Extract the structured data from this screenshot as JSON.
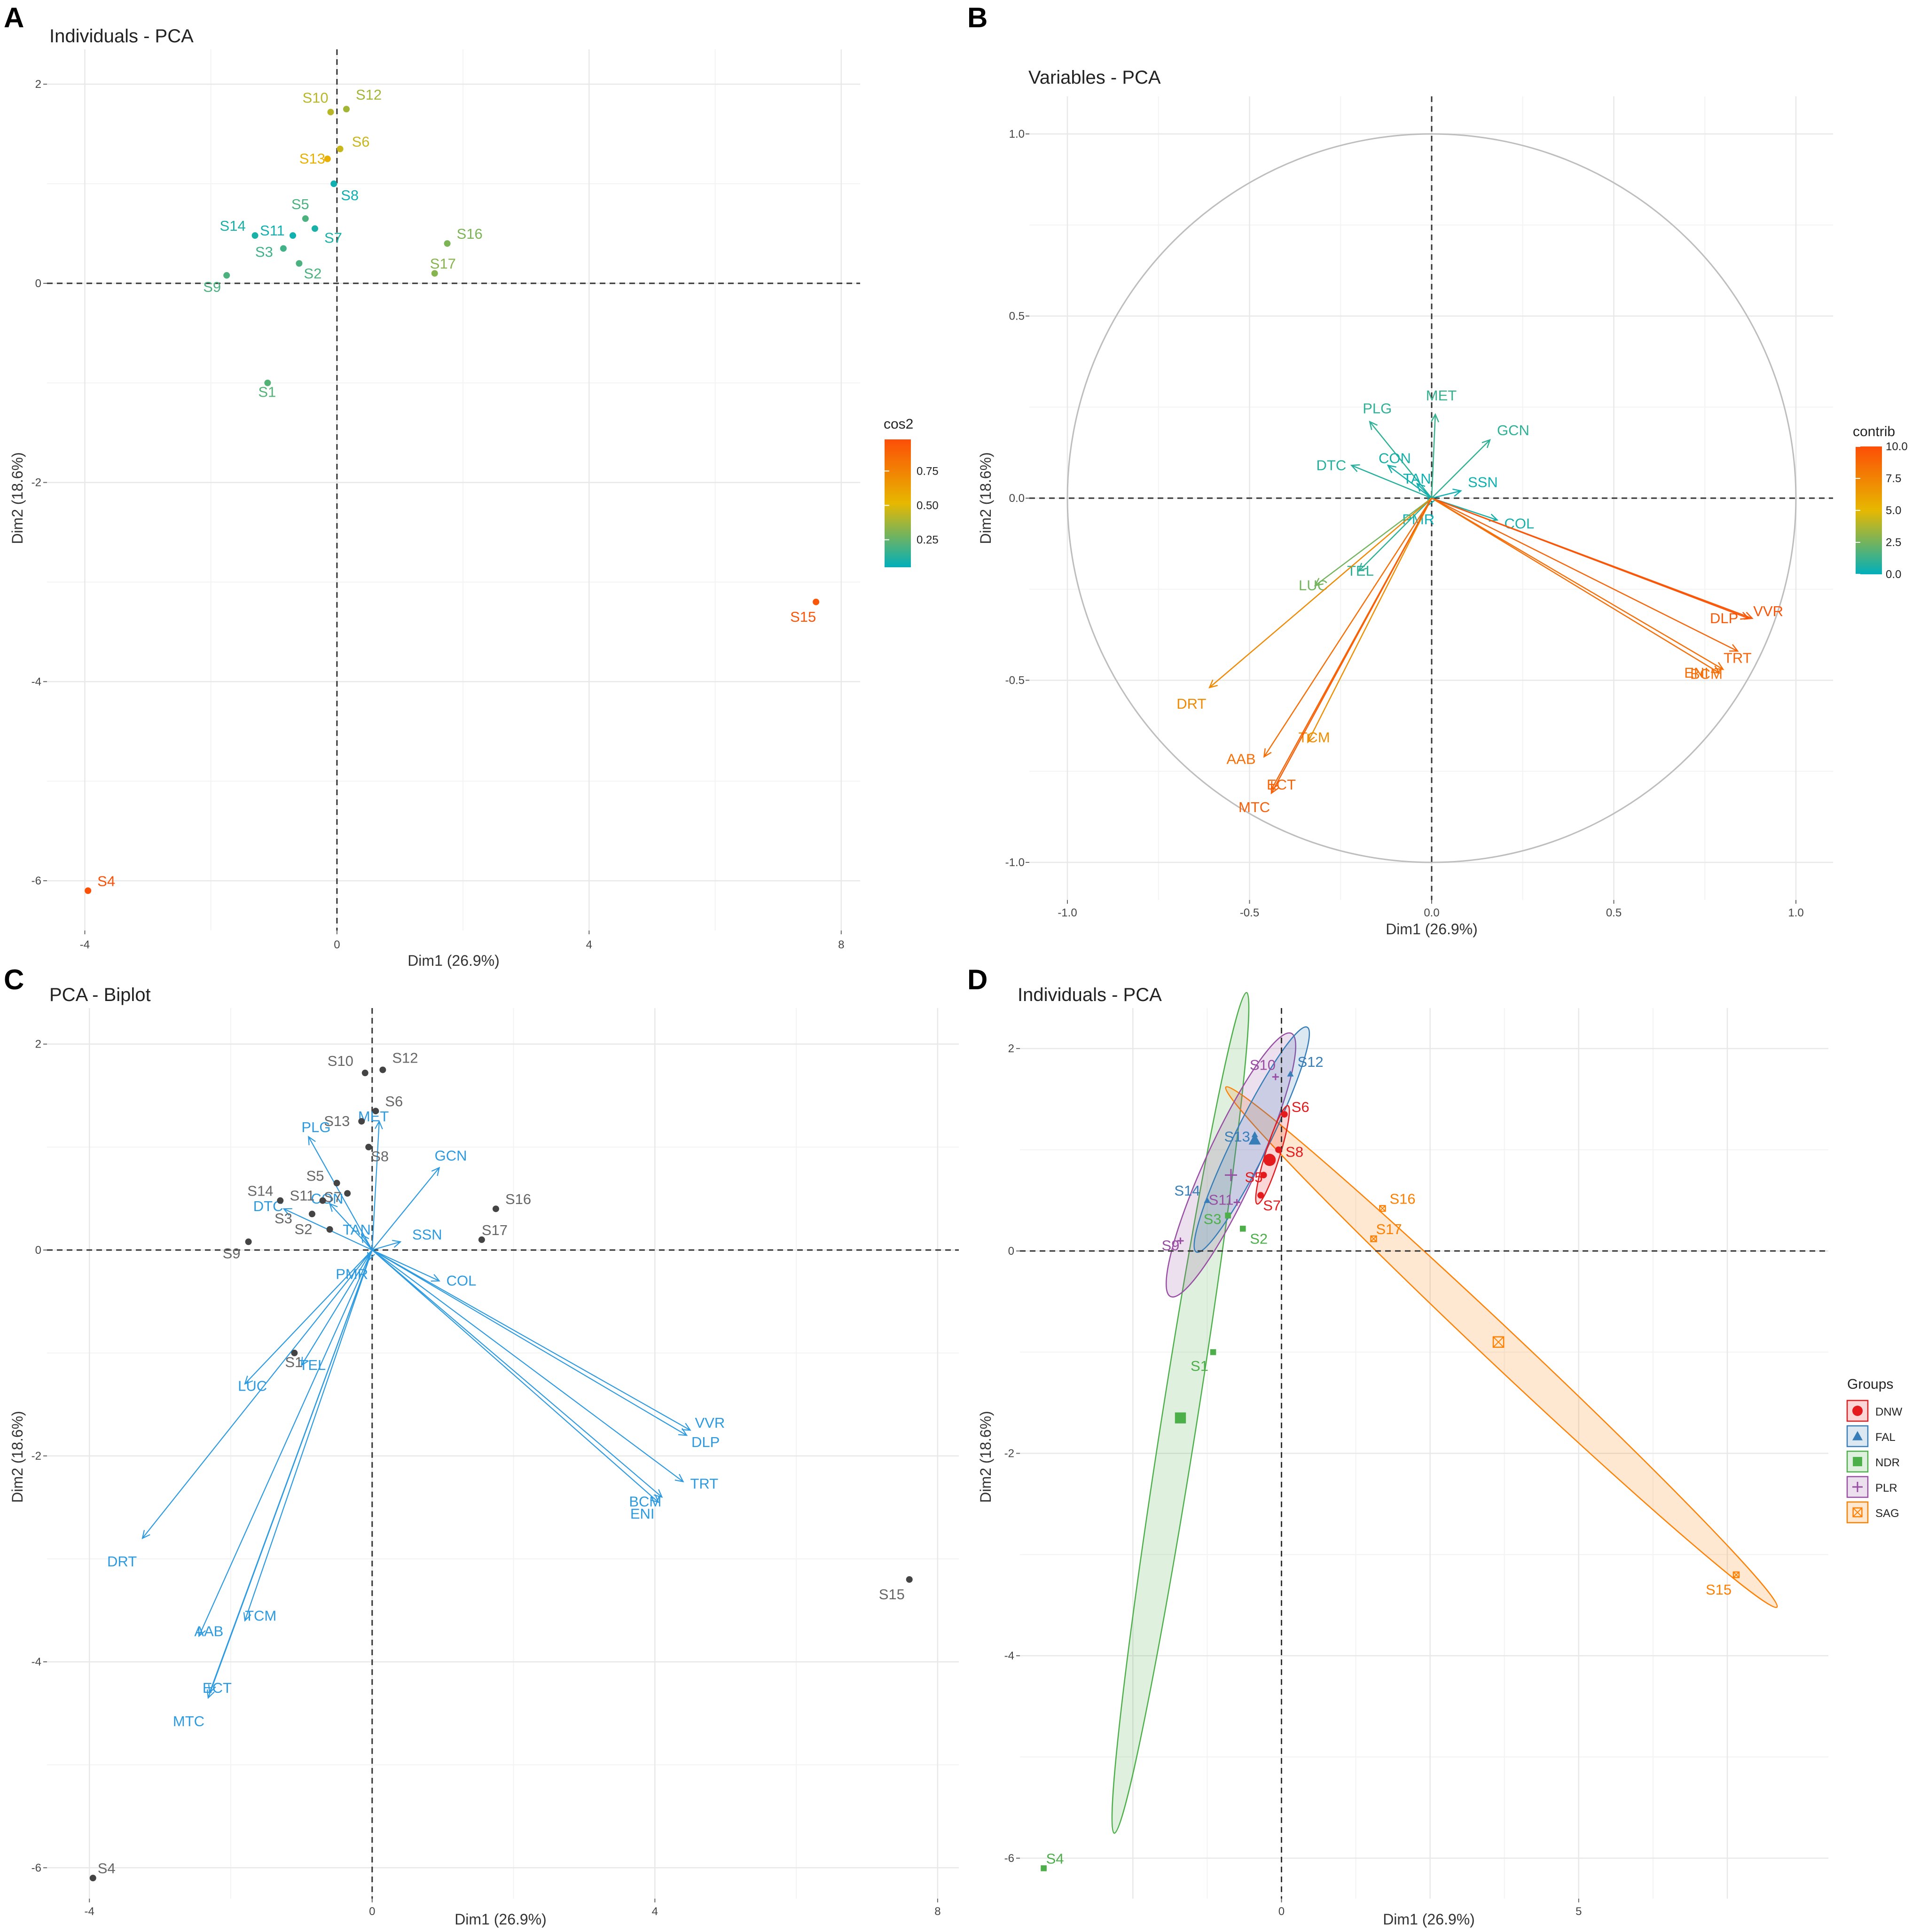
{
  "chart_data": [
    {
      "panel": "A",
      "type": "scatter",
      "title": "Individuals - PCA",
      "xlabel": "Dim1 (26.9%)",
      "ylabel": "Dim2 (18.6%)",
      "xlim": [
        -4,
        8
      ],
      "ylim": [
        -6.3,
        2.1
      ],
      "xticks": [
        -4,
        0,
        4,
        8
      ],
      "yticks": [
        -6,
        -4,
        -2,
        0,
        2
      ],
      "xtick_labels": [
        "-4",
        "0",
        "4",
        "8"
      ],
      "ytick_labels": [
        "-6",
        "-4",
        "-2",
        "0",
        "2"
      ],
      "legend_title": "cos2",
      "legend_range": [
        0.05,
        0.98
      ],
      "legend_ticks": [
        0.25,
        0.5,
        0.75
      ],
      "legend_tick_labels": [
        "0.25",
        "0.50",
        "0.75"
      ],
      "points": [
        {
          "label": "S1",
          "x": -1.1,
          "y": -1.0,
          "c": 0.22
        },
        {
          "label": "S2",
          "x": -0.6,
          "y": 0.2,
          "c": 0.2
        },
        {
          "label": "S3",
          "x": -0.85,
          "y": 0.35,
          "c": 0.18
        },
        {
          "label": "S4",
          "x": -3.95,
          "y": -6.1,
          "c": 0.97
        },
        {
          "label": "S5",
          "x": -0.5,
          "y": 0.65,
          "c": 0.2
        },
        {
          "label": "S6",
          "x": 0.05,
          "y": 1.35,
          "c": 0.45
        },
        {
          "label": "S7",
          "x": -0.35,
          "y": 0.55,
          "c": 0.1
        },
        {
          "label": "S8",
          "x": -0.05,
          "y": 1.0,
          "c": 0.08
        },
        {
          "label": "S9",
          "x": -1.75,
          "y": 0.08,
          "c": 0.2
        },
        {
          "label": "S10",
          "x": -0.1,
          "y": 1.72,
          "c": 0.42
        },
        {
          "label": "S11",
          "x": -0.7,
          "y": 0.48,
          "c": 0.08
        },
        {
          "label": "S12",
          "x": 0.15,
          "y": 1.75,
          "c": 0.38
        },
        {
          "label": "S13",
          "x": -0.15,
          "y": 1.25,
          "c": 0.55
        },
        {
          "label": "S14",
          "x": -1.3,
          "y": 0.48,
          "c": 0.1
        },
        {
          "label": "S15",
          "x": 7.6,
          "y": -3.2,
          "c": 0.95
        },
        {
          "label": "S16",
          "x": 1.75,
          "y": 0.4,
          "c": 0.3
        },
        {
          "label": "S17",
          "x": 1.55,
          "y": 0.1,
          "c": 0.32
        }
      ]
    },
    {
      "panel": "B",
      "type": "scatter",
      "title": "Variables - PCA",
      "xlabel": "Dim1 (26.9%)",
      "ylabel": "Dim2 (18.6%)",
      "xlim": [
        -1.0,
        1.0
      ],
      "ylim": [
        -1.0,
        1.0
      ],
      "xticks": [
        -1.0,
        -0.5,
        0.0,
        0.5,
        1.0
      ],
      "yticks": [
        -1.0,
        -0.5,
        0.0,
        0.5,
        1.0
      ],
      "xtick_labels": [
        "-1.0",
        "-0.5",
        "0.0",
        "0.5",
        "1.0"
      ],
      "ytick_labels": [
        "-1.0",
        "-0.5",
        "0.0",
        "0.5",
        "1.0"
      ],
      "legend_title": "contrib",
      "legend_range": [
        0,
        10
      ],
      "legend_ticks": [
        0,
        2.5,
        5,
        7.5,
        10
      ],
      "legend_tick_labels": [
        "0.0",
        "2.5",
        "5.0",
        "7.5",
        "10.0"
      ],
      "arrows": [
        {
          "label": "PLG",
          "x": -0.17,
          "y": 0.21,
          "c": 1.0
        },
        {
          "label": "MET",
          "x": 0.01,
          "y": 0.23,
          "c": 1.2
        },
        {
          "label": "GCN",
          "x": 0.16,
          "y": 0.16,
          "c": 1.0
        },
        {
          "label": "CON",
          "x": -0.12,
          "y": 0.09,
          "c": 0.5
        },
        {
          "label": "DTC",
          "x": -0.22,
          "y": 0.09,
          "c": 0.8
        },
        {
          "label": "TAN",
          "x": -0.04,
          "y": 0.04,
          "c": 0.3
        },
        {
          "label": "SSN",
          "x": 0.08,
          "y": 0.02,
          "c": 0.3
        },
        {
          "label": "PMR",
          "x": -0.01,
          "y": -0.02,
          "c": 0.2
        },
        {
          "label": "COL",
          "x": 0.18,
          "y": -0.06,
          "c": 0.5
        },
        {
          "label": "LUC",
          "x": -0.32,
          "y": -0.24,
          "c": 2.5
        },
        {
          "label": "TEL",
          "x": -0.2,
          "y": -0.2,
          "c": 1.0
        },
        {
          "label": "DLP",
          "x": 0.88,
          "y": -0.33,
          "c": 9.5
        },
        {
          "label": "VVR",
          "x": 0.87,
          "y": -0.33,
          "c": 9.7
        },
        {
          "label": "TRT",
          "x": 0.84,
          "y": -0.42,
          "c": 9.0
        },
        {
          "label": "BCM",
          "x": 0.8,
          "y": -0.47,
          "c": 8.5
        },
        {
          "label": "ENI",
          "x": 0.79,
          "y": -0.48,
          "c": 8.5
        },
        {
          "label": "DRT",
          "x": -0.61,
          "y": -0.52,
          "c": 7.2
        },
        {
          "label": "TCM",
          "x": -0.34,
          "y": -0.67,
          "c": 7.0
        },
        {
          "label": "AAB",
          "x": -0.46,
          "y": -0.71,
          "c": 8.5
        },
        {
          "label": "ECT",
          "x": -0.44,
          "y": -0.8,
          "c": 9.0
        },
        {
          "label": "MTC",
          "x": -0.44,
          "y": -0.81,
          "c": 9.2
        }
      ]
    },
    {
      "panel": "C",
      "type": "scatter",
      "title": "PCA - Biplot",
      "xlabel": "Dim1 (26.9%)",
      "ylabel": "Dim2 (18.6%)",
      "xlim": [
        -4,
        8
      ],
      "ylim": [
        -6.3,
        2.1
      ],
      "xticks": [
        -4,
        0,
        4,
        8
      ],
      "yticks": [
        -6,
        -4,
        -2,
        0,
        2
      ],
      "xtick_labels": [
        "-4",
        "0",
        "4",
        "8"
      ],
      "ytick_labels": [
        "-6",
        "-4",
        "-2",
        "0",
        "2"
      ],
      "points": [
        {
          "label": "S1",
          "x": -1.1,
          "y": -1.0
        },
        {
          "label": "S2",
          "x": -0.6,
          "y": 0.2
        },
        {
          "label": "S3",
          "x": -0.85,
          "y": 0.35
        },
        {
          "label": "S4",
          "x": -3.95,
          "y": -6.1
        },
        {
          "label": "S5",
          "x": -0.5,
          "y": 0.65
        },
        {
          "label": "S6",
          "x": 0.05,
          "y": 1.35
        },
        {
          "label": "S7",
          "x": -0.35,
          "y": 0.55
        },
        {
          "label": "S8",
          "x": -0.05,
          "y": 1.0
        },
        {
          "label": "S9",
          "x": -1.75,
          "y": 0.08
        },
        {
          "label": "S10",
          "x": -0.1,
          "y": 1.72
        },
        {
          "label": "S11",
          "x": -0.7,
          "y": 0.48
        },
        {
          "label": "S12",
          "x": 0.15,
          "y": 1.75
        },
        {
          "label": "S13",
          "x": -0.15,
          "y": 1.25
        },
        {
          "label": "S14",
          "x": -1.3,
          "y": 0.48
        },
        {
          "label": "S15",
          "x": 7.6,
          "y": -3.2
        },
        {
          "label": "S16",
          "x": 1.75,
          "y": 0.4
        },
        {
          "label": "S17",
          "x": 1.55,
          "y": 0.1
        }
      ],
      "arrows": [
        {
          "label": "PLG",
          "x": -0.9,
          "y": 1.1
        },
        {
          "label": "MET",
          "x": 0.1,
          "y": 1.25
        },
        {
          "label": "GCN",
          "x": 0.95,
          "y": 0.8
        },
        {
          "label": "CON",
          "x": -0.6,
          "y": 0.45
        },
        {
          "label": "DTC",
          "x": -1.25,
          "y": 0.4
        },
        {
          "label": "TAN",
          "x": -0.15,
          "y": 0.15
        },
        {
          "label": "SSN",
          "x": 0.4,
          "y": 0.08
        },
        {
          "label": "PMR",
          "x": -0.05,
          "y": -0.1
        },
        {
          "label": "COL",
          "x": 0.95,
          "y": -0.3
        },
        {
          "label": "LUC",
          "x": -1.8,
          "y": -1.3
        },
        {
          "label": "TEL",
          "x": -1.0,
          "y": -1.12
        },
        {
          "label": "VVR",
          "x": 4.5,
          "y": -1.75
        },
        {
          "label": "DLP",
          "x": 4.45,
          "y": -1.8
        },
        {
          "label": "TRT",
          "x": 4.4,
          "y": -2.25
        },
        {
          "label": "BCM",
          "x": 4.1,
          "y": -2.4
        },
        {
          "label": "ENI",
          "x": 4.05,
          "y": -2.45
        },
        {
          "label": "DRT",
          "x": -3.25,
          "y": -2.8
        },
        {
          "label": "TCM",
          "x": -1.8,
          "y": -3.6
        },
        {
          "label": "AAB",
          "x": -2.45,
          "y": -3.75
        },
        {
          "label": "ECT",
          "x": -2.3,
          "y": -4.3
        },
        {
          "label": "MTC",
          "x": -2.32,
          "y": -4.35
        }
      ]
    },
    {
      "panel": "D",
      "type": "scatter",
      "title": "Individuals - PCA",
      "xlabel": "Dim1 (26.9%)",
      "ylabel": "Dim2 (18.6%)",
      "xlim": [
        -4.2,
        9.5
      ],
      "ylim": [
        -6.4,
        2.3
      ],
      "xticks": [
        0,
        5
      ],
      "yticks": [
        -6,
        -4,
        -2,
        0,
        2
      ],
      "xtick_labels": [
        "0",
        "5"
      ],
      "ytick_labels": [
        "-6",
        "-4",
        "-2",
        "0",
        "2"
      ],
      "legend_title": "Groups",
      "groups": [
        {
          "name": "DNW",
          "color": "#e41a1c",
          "marker": "circle"
        },
        {
          "name": "FAL",
          "color": "#377eb8",
          "marker": "triangle"
        },
        {
          "name": "NDR",
          "color": "#4daf4a",
          "marker": "square"
        },
        {
          "name": "PLR",
          "color": "#984ea3",
          "marker": "plus"
        },
        {
          "name": "SAG",
          "color": "#ff7f00",
          "marker": "boxx"
        }
      ],
      "points": [
        {
          "label": "S1",
          "x": -1.15,
          "y": -1.0,
          "g": "NDR"
        },
        {
          "label": "S2",
          "x": -0.65,
          "y": 0.22,
          "g": "NDR"
        },
        {
          "label": "S3",
          "x": -0.9,
          "y": 0.35,
          "g": "NDR"
        },
        {
          "label": "S4",
          "x": -4.0,
          "y": -6.1,
          "g": "NDR"
        },
        {
          "label": "S5",
          "x": -0.3,
          "y": 0.75,
          "g": "DNW"
        },
        {
          "label": "S6",
          "x": 0.05,
          "y": 1.35,
          "g": "DNW"
        },
        {
          "label": "S7",
          "x": -0.35,
          "y": 0.55,
          "g": "DNW"
        },
        {
          "label": "S8",
          "x": -0.05,
          "y": 1.0,
          "g": "DNW"
        },
        {
          "label": "S9",
          "x": -1.7,
          "y": 0.1,
          "g": "PLR"
        },
        {
          "label": "S10",
          "x": -0.1,
          "y": 1.72,
          "g": "PLR"
        },
        {
          "label": "S11",
          "x": -0.75,
          "y": 0.48,
          "g": "PLR"
        },
        {
          "label": "S12",
          "x": 0.15,
          "y": 1.75,
          "g": "FAL"
        },
        {
          "label": "S13",
          "x": -0.45,
          "y": 1.15,
          "g": "FAL"
        },
        {
          "label": "S14",
          "x": -1.25,
          "y": 0.5,
          "g": "FAL"
        },
        {
          "label": "S15",
          "x": 7.65,
          "y": -3.2,
          "g": "SAG"
        },
        {
          "label": "S16",
          "x": 1.7,
          "y": 0.42,
          "g": "SAG"
        },
        {
          "label": "S17",
          "x": 1.55,
          "y": 0.12,
          "g": "SAG"
        }
      ],
      "centroids": [
        {
          "g": "DNW",
          "x": -0.2,
          "y": 0.9
        },
        {
          "g": "FAL",
          "x": -0.45,
          "y": 1.1
        },
        {
          "g": "NDR",
          "x": -1.7,
          "y": -1.65
        },
        {
          "g": "PLR",
          "x": -0.85,
          "y": 0.75
        },
        {
          "g": "SAG",
          "x": 3.65,
          "y": -0.9
        }
      ]
    }
  ],
  "panel_labels": [
    "A",
    "B",
    "C",
    "D"
  ]
}
